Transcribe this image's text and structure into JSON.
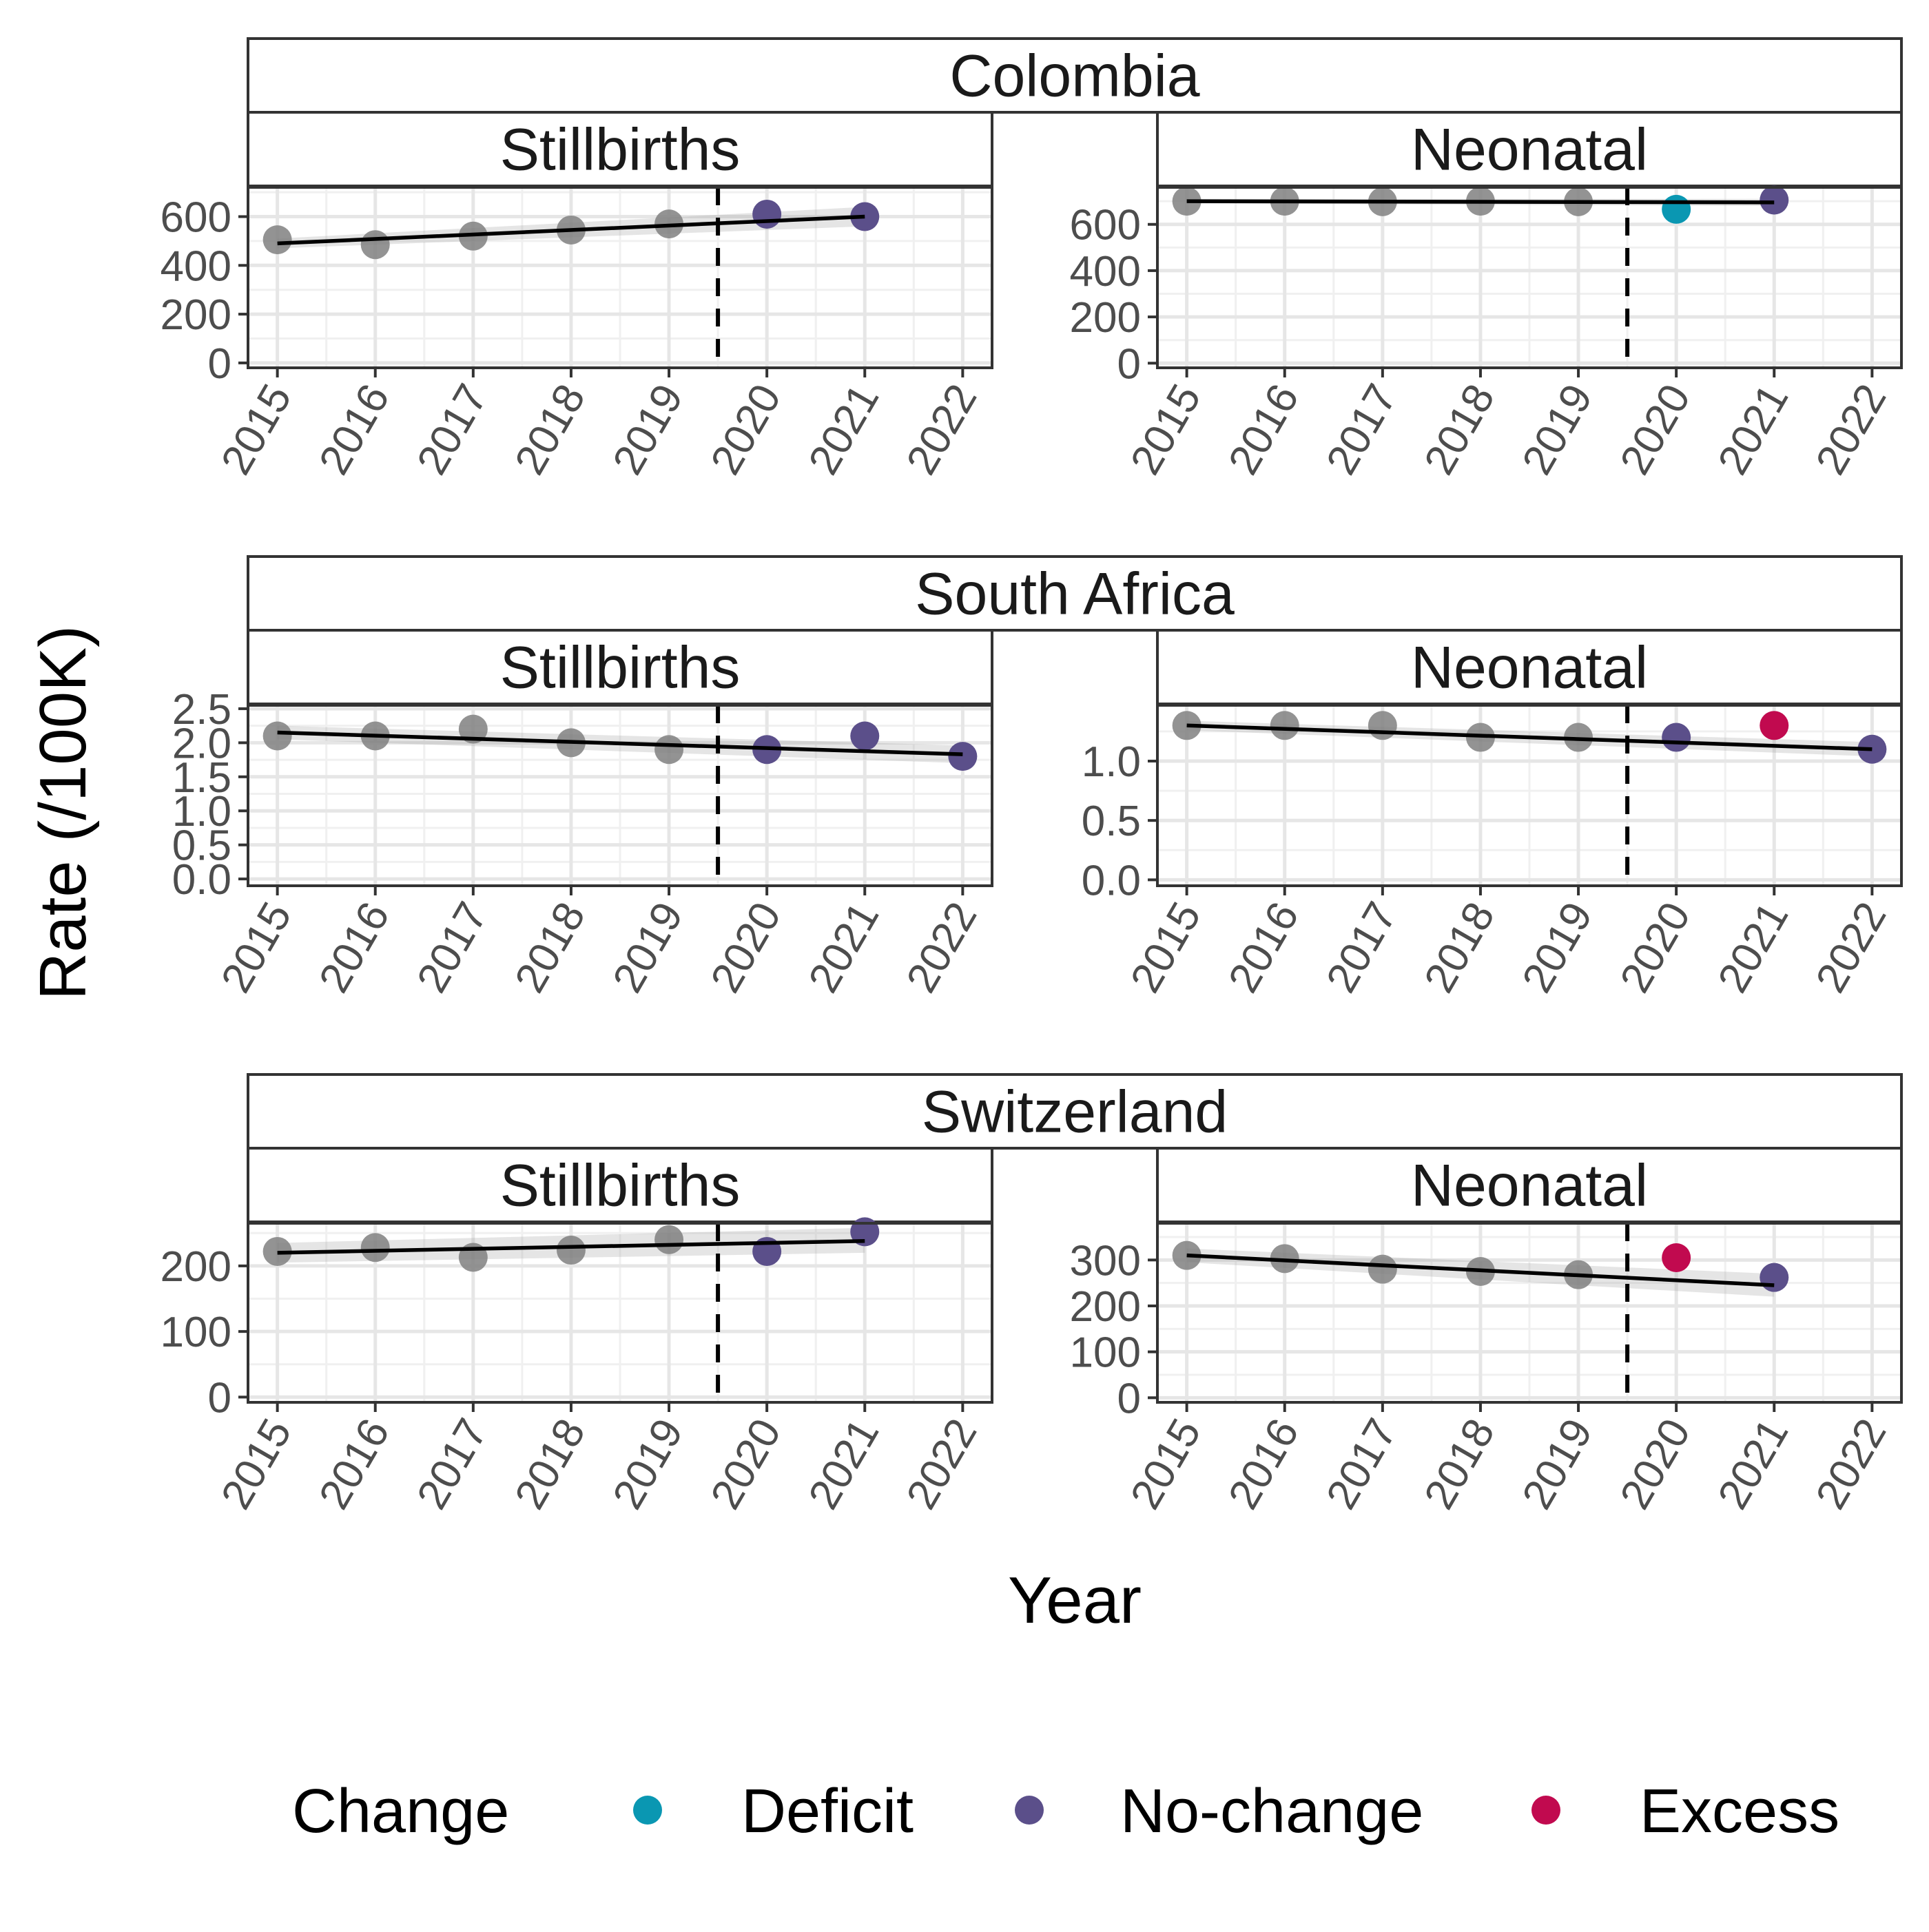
{
  "chart_data": {
    "type": "scatter",
    "xlabel": "Year",
    "ylabel": "Rate (/100K)",
    "x_ticks": [
      2015,
      2016,
      2017,
      2018,
      2019,
      2020,
      2021,
      2022
    ],
    "xlim": [
      2014.7,
      2022.3
    ],
    "reference_line_x": 2019.5,
    "legend": {
      "title": "Change",
      "position": "bottom",
      "entries": [
        {
          "label": "Deficit",
          "color": "#0a97b2"
        },
        {
          "label": "No-change",
          "color": "#5b4f8a"
        },
        {
          "label": "Excess",
          "color": "#c10a4f"
        }
      ]
    },
    "baseline_color": "#808080",
    "countries": [
      {
        "name": "Colombia",
        "panels": [
          {
            "label": "Stillbirths",
            "ylim": [
              -20,
              720
            ],
            "yticks": [
              0,
              200,
              400,
              600
            ],
            "ytick_labels": [
              "0",
              "200",
              "400",
              "600"
            ],
            "trend": [
              490,
              600
            ],
            "band": [
              [
                470,
                510
              ],
              [
                560,
                640
              ]
            ],
            "points": [
              {
                "year": 2015,
                "value": 505,
                "status": "baseline"
              },
              {
                "year": 2016,
                "value": 485,
                "status": "baseline"
              },
              {
                "year": 2017,
                "value": 520,
                "status": "baseline"
              },
              {
                "year": 2018,
                "value": 545,
                "status": "baseline"
              },
              {
                "year": 2019,
                "value": 570,
                "status": "baseline"
              },
              {
                "year": 2020,
                "value": 610,
                "status": "No-change"
              },
              {
                "year": 2021,
                "value": 600,
                "status": "No-change"
              }
            ]
          },
          {
            "label": "Neonatal",
            "ylim": [
              -20,
              760
            ],
            "yticks": [
              0,
              200,
              400,
              600
            ],
            "ytick_labels": [
              "0",
              "200",
              "400",
              "600"
            ],
            "trend": [
              700,
              695
            ],
            "band": [
              [
                690,
                710
              ],
              [
                680,
                710
              ]
            ],
            "points": [
              {
                "year": 2015,
                "value": 700,
                "status": "baseline"
              },
              {
                "year": 2016,
                "value": 700,
                "status": "baseline"
              },
              {
                "year": 2017,
                "value": 698,
                "status": "baseline"
              },
              {
                "year": 2018,
                "value": 700,
                "status": "baseline"
              },
              {
                "year": 2019,
                "value": 698,
                "status": "baseline"
              },
              {
                "year": 2020,
                "value": 665,
                "status": "Deficit"
              },
              {
                "year": 2021,
                "value": 705,
                "status": "No-change"
              }
            ]
          }
        ]
      },
      {
        "name": "South Africa",
        "panels": [
          {
            "label": "Stillbirths",
            "ylim": [
              -0.1,
              2.55
            ],
            "yticks": [
              0,
              0.5,
              1.0,
              1.5,
              2.0,
              2.5
            ],
            "ytick_labels": [
              "0.0",
              "0.5",
              "1.0",
              "1.5",
              "2.0",
              "2.5"
            ],
            "trend": [
              2.15,
              1.83
            ],
            "band": [
              [
                2.05,
                2.25
              ],
              [
                1.7,
                1.96
              ]
            ],
            "points": [
              {
                "year": 2015,
                "value": 2.1,
                "status": "baseline"
              },
              {
                "year": 2016,
                "value": 2.1,
                "status": "baseline"
              },
              {
                "year": 2017,
                "value": 2.2,
                "status": "baseline"
              },
              {
                "year": 2018,
                "value": 2.0,
                "status": "baseline"
              },
              {
                "year": 2019,
                "value": 1.9,
                "status": "baseline"
              },
              {
                "year": 2020,
                "value": 1.9,
                "status": "No-change"
              },
              {
                "year": 2021,
                "value": 2.1,
                "status": "No-change"
              },
              {
                "year": 2022,
                "value": 1.8,
                "status": "No-change"
              }
            ]
          },
          {
            "label": "Neonatal",
            "ylim": [
              -0.05,
              1.47
            ],
            "yticks": [
              0,
              0.5,
              1.0
            ],
            "ytick_labels": [
              "0.0",
              "0.5",
              "1.0"
            ],
            "trend": [
              1.3,
              1.1
            ],
            "band": [
              [
                1.26,
                1.34
              ],
              [
                1.04,
                1.16
              ]
            ],
            "points": [
              {
                "year": 2015,
                "value": 1.3,
                "status": "baseline"
              },
              {
                "year": 2016,
                "value": 1.3,
                "status": "baseline"
              },
              {
                "year": 2017,
                "value": 1.3,
                "status": "baseline"
              },
              {
                "year": 2018,
                "value": 1.2,
                "status": "baseline"
              },
              {
                "year": 2019,
                "value": 1.2,
                "status": "baseline"
              },
              {
                "year": 2020,
                "value": 1.2,
                "status": "No-change"
              },
              {
                "year": 2021,
                "value": 1.3,
                "status": "Excess"
              },
              {
                "year": 2022,
                "value": 1.1,
                "status": "No-change"
              }
            ]
          }
        ]
      },
      {
        "name": "Switzerland",
        "panels": [
          {
            "label": "Stillbirths",
            "ylim": [
              -8,
              265
            ],
            "yticks": [
              0,
              100,
              200
            ],
            "ytick_labels": [
              "0",
              "100",
              "200"
            ],
            "trend": [
              220,
              238
            ],
            "band": [
              [
                205,
                235
              ],
              [
                220,
                258
              ]
            ],
            "points": [
              {
                "year": 2015,
                "value": 222,
                "status": "baseline"
              },
              {
                "year": 2016,
                "value": 228,
                "status": "baseline"
              },
              {
                "year": 2017,
                "value": 213,
                "status": "baseline"
              },
              {
                "year": 2018,
                "value": 224,
                "status": "baseline"
              },
              {
                "year": 2019,
                "value": 240,
                "status": "baseline"
              },
              {
                "year": 2020,
                "value": 222,
                "status": "No-change"
              },
              {
                "year": 2021,
                "value": 252,
                "status": "No-change"
              }
            ]
          },
          {
            "label": "Neonatal",
            "ylim": [
              -10,
              380
            ],
            "yticks": [
              0,
              100,
              200,
              300
            ],
            "ytick_labels": [
              "0",
              "100",
              "200",
              "300"
            ],
            "trend": [
              310,
              245
            ],
            "band": [
              [
                295,
                325
              ],
              [
                220,
                270
              ]
            ],
            "points": [
              {
                "year": 2015,
                "value": 310,
                "status": "baseline"
              },
              {
                "year": 2016,
                "value": 303,
                "status": "baseline"
              },
              {
                "year": 2017,
                "value": 280,
                "status": "baseline"
              },
              {
                "year": 2018,
                "value": 275,
                "status": "baseline"
              },
              {
                "year": 2019,
                "value": 268,
                "status": "baseline"
              },
              {
                "year": 2020,
                "value": 305,
                "status": "Excess"
              },
              {
                "year": 2021,
                "value": 262,
                "status": "No-change"
              }
            ]
          }
        ]
      }
    ]
  }
}
